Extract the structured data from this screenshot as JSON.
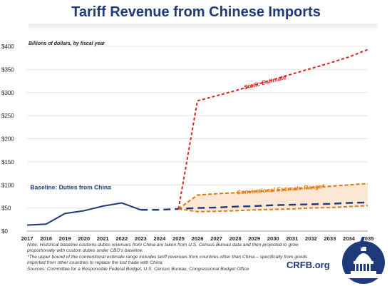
{
  "title": "Tariff Revenue from Chinese Imports",
  "logo_text": "CRFB.org",
  "notes": [
    "Note: Historical baseline customs duties revenues from China are taken from U.S. Census Bureau data and then projected to grow proportionally with custom duties under CBO's baseline.",
    "*The upper bound of the conventional estimate range includes tariff revenues from countries other than China – specifically from goods imported from other countries to replace the lost trade with China.",
    "Sources: Committee for a Responsible Federal Budget, U.S. Census Bureau, Congressional Budget Office"
  ],
  "colors": {
    "baseline": "#1f3a7a",
    "static": "#e02020",
    "conventional": "#e07a10",
    "range_fill": "#fbe7d3",
    "title": "#1f3a7a"
  },
  "chart_data": {
    "type": "line",
    "title": "Tariff Revenue from Chinese Imports",
    "unit_label": "Billions of dollars, by fiscal year",
    "x": [
      2017,
      2018,
      2019,
      2020,
      2021,
      2022,
      2023,
      2024,
      2025,
      2026,
      2027,
      2028,
      2029,
      2030,
      2031,
      2032,
      2033,
      2034,
      2035
    ],
    "xlim": [
      2017,
      2035
    ],
    "ylim": [
      0,
      400
    ],
    "yticks": [
      0,
      50,
      100,
      150,
      200,
      250,
      300,
      350,
      400
    ],
    "ytick_labels": [
      "$0",
      "$50",
      "$100",
      "$150",
      "$200",
      "$250",
      "$300",
      "$350",
      "$400"
    ],
    "grid": true,
    "series": [
      {
        "name": "Baseline: Duties from China",
        "style": "solid-then-dashed",
        "color": "#1f3a7a",
        "x": [
          2017,
          2018,
          2019,
          2020,
          2021,
          2022,
          2023,
          2024,
          2025,
          2026,
          2027,
          2028,
          2029,
          2030,
          2031,
          2032,
          2033,
          2034,
          2035
        ],
        "values": [
          13,
          15,
          38,
          44,
          54,
          61,
          46,
          46,
          48,
          50,
          51,
          53,
          54,
          56,
          57,
          58,
          59,
          61,
          62
        ],
        "solid_until": 2023
      },
      {
        "name": "Static Estimate",
        "style": "dashed",
        "color": "#e02020",
        "x": [
          2025,
          2026,
          2027,
          2028,
          2029,
          2030,
          2031,
          2032,
          2033,
          2034,
          2035
        ],
        "values": [
          48,
          282,
          293,
          304,
          316,
          328,
          340,
          352,
          364,
          377,
          393
        ]
      },
      {
        "name": "Conventional Estimate Range*",
        "style": "dashed-band",
        "color": "#e07a10",
        "x": [
          2025,
          2026,
          2027,
          2028,
          2029,
          2030,
          2031,
          2032,
          2033,
          2034,
          2035
        ],
        "upper": [
          48,
          78,
          81,
          83,
          86,
          88,
          91,
          94,
          97,
          100,
          103
        ],
        "lower": [
          48,
          42,
          43,
          44,
          46,
          47,
          48,
          50,
          51,
          53,
          55
        ]
      }
    ],
    "annotations": [
      {
        "text": "Static Estimate",
        "color": "#e02020",
        "x": 2029.6,
        "y": 318,
        "rotate": -14
      },
      {
        "text": "Conventional Estimate Range*",
        "color": "#e07a10",
        "x": 2030.4,
        "y": 86,
        "rotate": -4
      },
      {
        "text": "Baseline: Duties from China",
        "color": "#1f3a7a",
        "x": 2019.3,
        "y": 90,
        "rotate": 0
      }
    ]
  }
}
